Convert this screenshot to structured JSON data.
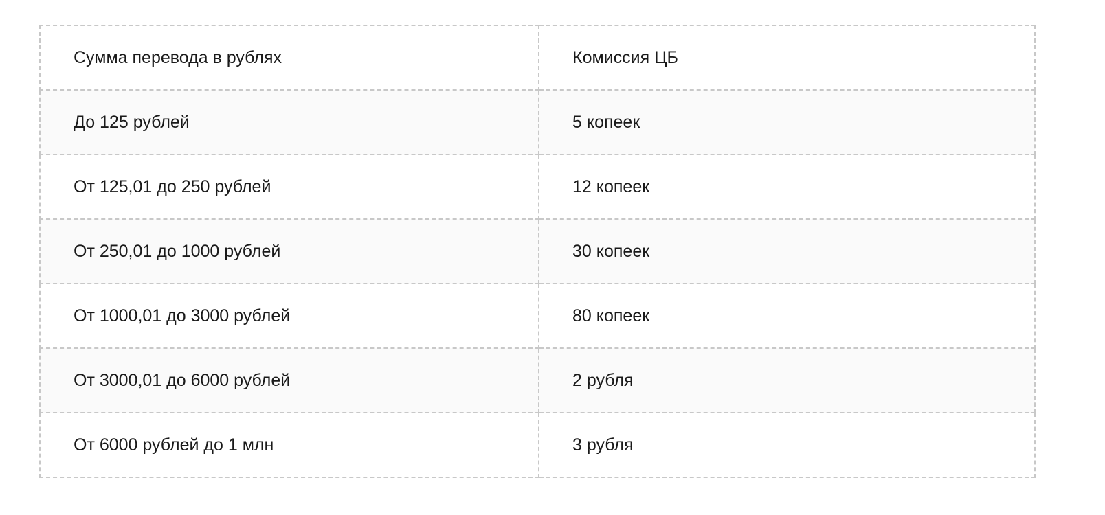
{
  "table": {
    "headers": [
      "Сумма перевода в рублях",
      "Комиссия ЦБ"
    ],
    "rows": [
      [
        "До 125 рублей",
        "5 копеек"
      ],
      [
        "От 125,01 до 250 рублей",
        "12 копеек"
      ],
      [
        "От 250,01 до 1000 рублей",
        "30 копеек"
      ],
      [
        "От 1000,01 до 3000 рублей",
        "80 копеек"
      ],
      [
        "От 3000,01 до 6000 рублей",
        "2 рубля"
      ],
      [
        "От 6000 рублей до 1 млн",
        "3 рубля"
      ]
    ]
  }
}
